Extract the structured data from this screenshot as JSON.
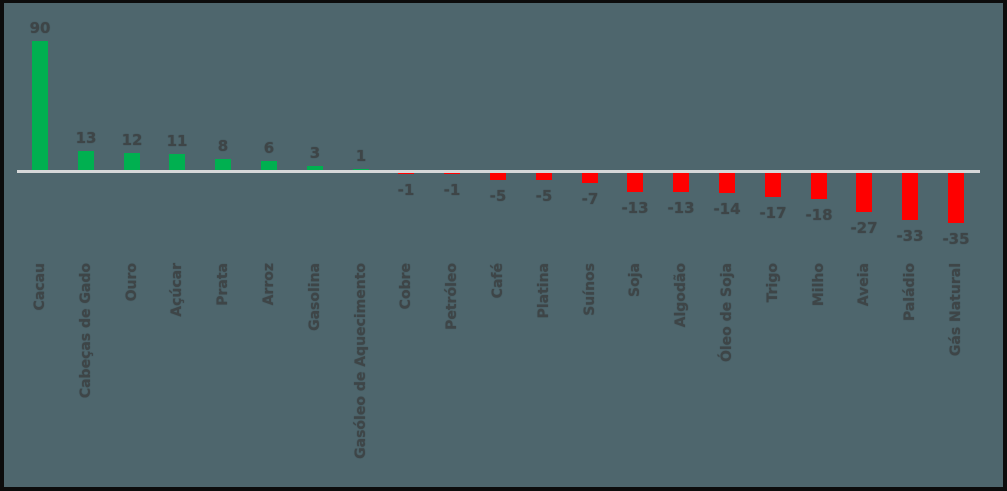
{
  "chart_data": {
    "type": "bar",
    "title": "",
    "xlabel": "",
    "ylabel": "",
    "categories": [
      "Cacau",
      "Cabeças de Gado",
      "Ouro",
      "Açúcar",
      "Prata",
      "Arroz",
      "Gasolina",
      "Gasóleo de Aquecimento",
      "Cobre",
      "Petróleo",
      "Café",
      "Platina",
      "Suínos",
      "Soja",
      "Algodão",
      "Óleo de Soja",
      "Trigo",
      "Milho",
      "Aveia",
      "Paládio",
      "Gás Natural"
    ],
    "values": [
      90,
      13,
      12,
      11,
      8,
      6,
      3,
      1,
      -1,
      -1,
      -5,
      -5,
      -7,
      -13,
      -13,
      -14,
      -17,
      -18,
      -27,
      -33,
      -35
    ],
    "data_labels": [
      "90",
      "13",
      "12",
      "11",
      "8",
      "6",
      "3",
      "1",
      "-1",
      "-1",
      "-5",
      "-5",
      "-7",
      "-13",
      "-13",
      "-14",
      "-17",
      "-18",
      "-27",
      "-33",
      "-35"
    ],
    "ylim": [
      -35,
      90
    ],
    "grid": false,
    "legend": false,
    "axis_labels_rotation": "vertical-bottom-to-top",
    "colors": {
      "positive_bar": "#00b050",
      "negative_bar": "#fe0000",
      "background": "#4e666d",
      "axis_line": "#d6d8d9",
      "text": "#3e4547",
      "frame_border": "#0c0c0c"
    }
  }
}
